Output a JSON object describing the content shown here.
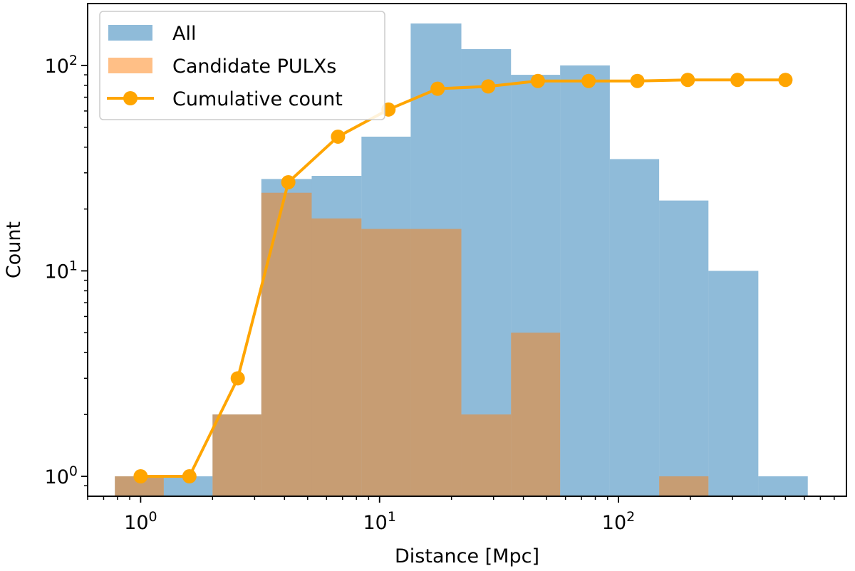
{
  "chart_data": {
    "type": "bar",
    "xlabel": "Distance [Mpc]",
    "ylabel": "Count",
    "xscale": "log",
    "yscale": "log",
    "xlim": [
      0.6,
      900
    ],
    "ylim": [
      0.8,
      200
    ],
    "grid": false,
    "legend_position": "top-left",
    "x_ticks": [
      {
        "base": "10",
        "exp": "0",
        "value": 1
      },
      {
        "base": "10",
        "exp": "1",
        "value": 10
      },
      {
        "base": "10",
        "exp": "2",
        "value": 100
      }
    ],
    "y_ticks": [
      {
        "base": "10",
        "exp": "0",
        "value": 1
      },
      {
        "base": "10",
        "exp": "1",
        "value": 10
      },
      {
        "base": "10",
        "exp": "2",
        "value": 100
      }
    ],
    "bin_edges": [
      0.78,
      1.25,
      2.0,
      3.2,
      5.2,
      8.4,
      13.5,
      22,
      35.5,
      57,
      92,
      148,
      238,
      385,
      620
    ],
    "series": [
      {
        "name": "All",
        "kind": "hist",
        "color": "#1f77b4",
        "opacity": 0.5,
        "values": [
          1,
          1,
          2,
          28,
          29,
          45,
          160,
          120,
          90,
          100,
          35,
          22,
          10,
          1
        ]
      },
      {
        "name": "Candidate PULXs",
        "kind": "hist",
        "color": "#ff7f0e",
        "opacity": 0.5,
        "values": [
          1,
          0,
          2,
          24,
          18,
          16,
          16,
          2,
          5,
          0,
          0,
          1,
          0,
          0
        ]
      },
      {
        "name": "Cumulative count",
        "kind": "line",
        "color": "#ffa500",
        "x": [
          1.0,
          1.6,
          2.55,
          4.15,
          6.7,
          10.9,
          17.5,
          28.5,
          46,
          75,
          120,
          195,
          315,
          500
        ],
        "values": [
          1,
          1,
          3,
          27,
          45,
          61,
          77,
          79,
          84,
          84,
          84,
          85,
          85,
          85
        ]
      }
    ]
  }
}
